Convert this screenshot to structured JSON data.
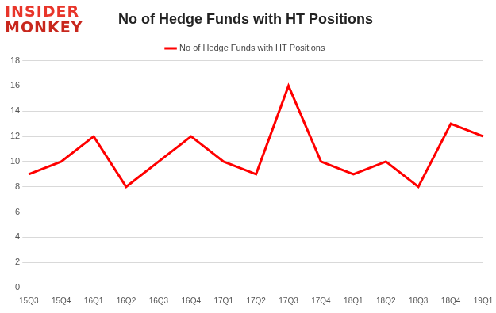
{
  "chart_data": {
    "type": "line",
    "title": "No of Hedge Funds with HT Positions",
    "annotations": [
      "INSIDER",
      "MONKEY"
    ],
    "categories": [
      "15Q3",
      "15Q4",
      "16Q1",
      "16Q2",
      "16Q3",
      "16Q4",
      "17Q1",
      "17Q2",
      "17Q3",
      "17Q4",
      "18Q1",
      "18Q2",
      "18Q3",
      "18Q4",
      "19Q1"
    ],
    "series": [
      {
        "name": "No of Hedge Funds with HT Positions",
        "color": "#ff0000",
        "values": [
          9,
          10,
          12,
          8,
          10,
          12,
          10,
          9,
          16,
          10,
          9,
          10,
          8,
          13,
          12
        ]
      }
    ],
    "ylim": [
      0,
      18
    ],
    "yticks": [
      0,
      2,
      4,
      6,
      8,
      10,
      12,
      14,
      16,
      18
    ],
    "grid": true,
    "legend": "top"
  }
}
